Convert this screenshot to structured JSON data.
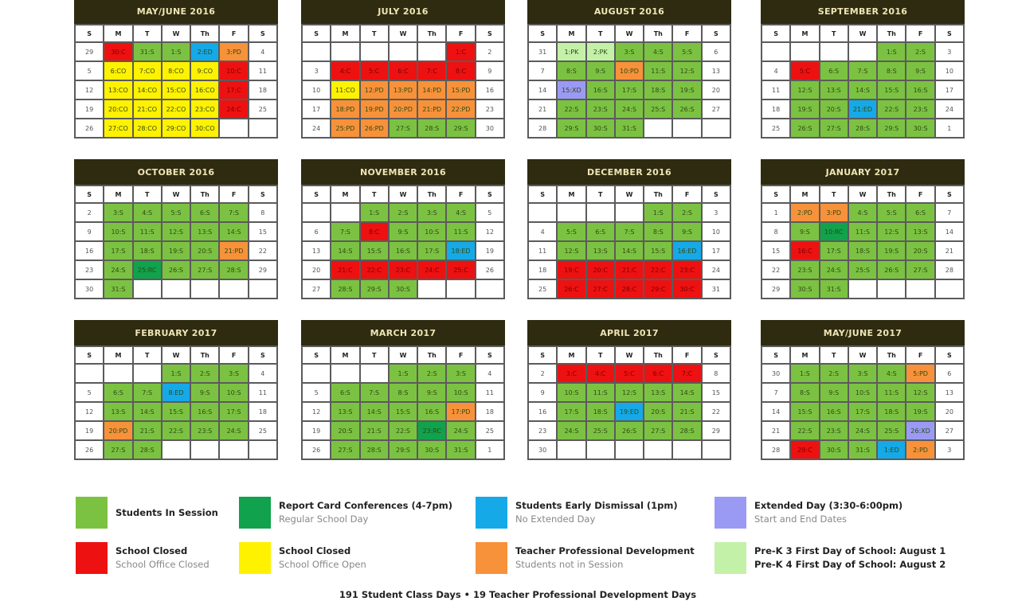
{
  "day_headers": [
    "S",
    "M",
    "T",
    "W",
    "Th",
    "F",
    "S"
  ],
  "status_colors": {
    "S": "#7cc242",
    "RC": "#10a24c",
    "ED": "#15a9e8",
    "XD": "#9a9af4",
    "C": "#ee1111",
    "CO": "#fff200",
    "PD": "#f7923a",
    "PK": "#c4f1a8"
  },
  "header_color": "#2f2b11",
  "months": [
    {
      "title": "MAY/JUNE 2016",
      "weeks": [
        [
          "29",
          "30:C",
          "31:S",
          "1:S",
          "2:ED",
          "3:PD",
          "4"
        ],
        [
          "5",
          "6:CO",
          "7:CO",
          "8:CO",
          "9:CO",
          "10:C",
          "11"
        ],
        [
          "12",
          "13:CO",
          "14:CO",
          "15:CO",
          "16:CO",
          "17:C",
          "18"
        ],
        [
          "19",
          "20:CO",
          "21:CO",
          "22:CO",
          "23:CO",
          "24:C",
          "25"
        ],
        [
          "26",
          "27:CO",
          "28:CO",
          "29:CO",
          "30:CO",
          "",
          ""
        ]
      ]
    },
    {
      "title": "JULY 2016",
      "weeks": [
        [
          "",
          "",
          "",
          "",
          "",
          "1:C",
          "2"
        ],
        [
          "3",
          "4:C",
          "5:C",
          "6:C",
          "7:C",
          "8:C",
          "9"
        ],
        [
          "10",
          "11:CO",
          "12:PD",
          "13:PD",
          "14:PD",
          "15:PD",
          "16"
        ],
        [
          "17",
          "18:PD",
          "19:PD",
          "20:PD",
          "21:PD",
          "22:PD",
          "23"
        ],
        [
          "24",
          "25:PD",
          "26:PD",
          "27:S",
          "28:S",
          "29:S",
          "30"
        ]
      ]
    },
    {
      "title": "AUGUST 2016",
      "weeks": [
        [
          "31",
          "1:PK",
          "2:PK",
          "3:S",
          "4:S",
          "5:S",
          "6"
        ],
        [
          "7",
          "8:S",
          "9:S",
          "10:PD",
          "11:S",
          "12:S",
          "13"
        ],
        [
          "14",
          "15:XD",
          "16:S",
          "17:S",
          "18:S",
          "19:S",
          "20"
        ],
        [
          "21",
          "22:S",
          "23:S",
          "24:S",
          "25:S",
          "26:S",
          "27"
        ],
        [
          "28",
          "29:S",
          "30:S",
          "31:S",
          "",
          "",
          ""
        ]
      ]
    },
    {
      "title": "SEPTEMBER 2016",
      "weeks": [
        [
          "",
          "",
          "",
          "",
          "1:S",
          "2:S",
          "3"
        ],
        [
          "4",
          "5:C",
          "6:S",
          "7:S",
          "8:S",
          "9:S",
          "10"
        ],
        [
          "11",
          "12:S",
          "13:S",
          "14:S",
          "15:S",
          "16:S",
          "17"
        ],
        [
          "18",
          "19:S",
          "20:S",
          "21:ED",
          "22:S",
          "23:S",
          "24"
        ],
        [
          "25",
          "26:S",
          "27:S",
          "28:S",
          "29:S",
          "30:S",
          "1"
        ]
      ]
    },
    {
      "title": "OCTOBER 2016",
      "weeks": [
        [
          "2",
          "3:S",
          "4:S",
          "5:S",
          "6:S",
          "7:S",
          "8"
        ],
        [
          "9",
          "10:S",
          "11:S",
          "12:S",
          "13:S",
          "14:S",
          "15"
        ],
        [
          "16",
          "17:S",
          "18:S",
          "19:S",
          "20:S",
          "21:PD",
          "22"
        ],
        [
          "23",
          "24:S",
          "25:RC",
          "26:S",
          "27:S",
          "28:S",
          "29"
        ],
        [
          "30",
          "31:S",
          "",
          "",
          "",
          "",
          ""
        ]
      ]
    },
    {
      "title": "NOVEMBER 2016",
      "weeks": [
        [
          "",
          "",
          "1:S",
          "2:S",
          "3:S",
          "4:S",
          "5"
        ],
        [
          "6",
          "7:S",
          "8:C",
          "9:S",
          "10:S",
          "11:S",
          "12"
        ],
        [
          "13",
          "14:S",
          "15:S",
          "16:S",
          "17:S",
          "18:ED",
          "19"
        ],
        [
          "20",
          "21:C",
          "22:C",
          "23:C",
          "24:C",
          "25:C",
          "26"
        ],
        [
          "27",
          "28:S",
          "29:S",
          "30:S",
          "",
          "",
          ""
        ]
      ]
    },
    {
      "title": "DECEMBER 2016",
      "weeks": [
        [
          "",
          "",
          "",
          "",
          "1:S",
          "2:S",
          "3"
        ],
        [
          "4",
          "5:S",
          "6:S",
          "7:S",
          "8:S",
          "9:S",
          "10"
        ],
        [
          "11",
          "12:S",
          "13:S",
          "14:S",
          "15:S",
          "16:ED",
          "17"
        ],
        [
          "18",
          "19:C",
          "20:C",
          "21:C",
          "22:C",
          "23:C",
          "24"
        ],
        [
          "25",
          "26:C",
          "27:C",
          "28:C",
          "29:C",
          "30:C",
          "31"
        ]
      ]
    },
    {
      "title": "JANUARY 2017",
      "weeks": [
        [
          "1",
          "2:PD",
          "3:PD",
          "4:S",
          "5:S",
          "6:S",
          "7"
        ],
        [
          "8",
          "9:S",
          "10:RC",
          "11:S",
          "12:S",
          "13:S",
          "14"
        ],
        [
          "15",
          "16:C",
          "17:S",
          "18:S",
          "19:S",
          "20:S",
          "21"
        ],
        [
          "22",
          "23:S",
          "24:S",
          "25:S",
          "26:S",
          "27:S",
          "28"
        ],
        [
          "29",
          "30:S",
          "31:S",
          "",
          "",
          "",
          ""
        ]
      ]
    },
    {
      "title": "FEBRUARY 2017",
      "weeks": [
        [
          "",
          "",
          "",
          "1:S",
          "2:S",
          "3:S",
          "4"
        ],
        [
          "5",
          "6:S",
          "7:S",
          "8:ED",
          "9:S",
          "10:S",
          "11"
        ],
        [
          "12",
          "13:S",
          "14:S",
          "15:S",
          "16:S",
          "17:S",
          "18"
        ],
        [
          "19",
          "20:PD",
          "21:S",
          "22:S",
          "23:S",
          "24:S",
          "25"
        ],
        [
          "26",
          "27:S",
          "28:S",
          "",
          "",
          "",
          ""
        ]
      ]
    },
    {
      "title": "MARCH 2017",
      "weeks": [
        [
          "",
          "",
          "",
          "1:S",
          "2:S",
          "3:S",
          "4"
        ],
        [
          "5",
          "6:S",
          "7:S",
          "8:S",
          "9:S",
          "10:S",
          "11"
        ],
        [
          "12",
          "13:S",
          "14:S",
          "15:S",
          "16:S",
          "17:PD",
          "18"
        ],
        [
          "19",
          "20:S",
          "21:S",
          "22:S",
          "23:RC",
          "24:S",
          "25"
        ],
        [
          "26",
          "27:S",
          "28:S",
          "29:S",
          "30:S",
          "31:S",
          "1"
        ]
      ]
    },
    {
      "title": "APRIL 2017",
      "weeks": [
        [
          "2",
          "3:C",
          "4:C",
          "5:C",
          "6:C",
          "7:C",
          "8"
        ],
        [
          "9",
          "10:S",
          "11:S",
          "12:S",
          "13:S",
          "14:S",
          "15"
        ],
        [
          "16",
          "17:S",
          "18:S",
          "19:ED",
          "20:S",
          "21:S",
          "22"
        ],
        [
          "23",
          "24:S",
          "25:S",
          "26:S",
          "27:S",
          "28:S",
          "29"
        ],
        [
          "30",
          "",
          "",
          "",
          "",
          "",
          ""
        ]
      ]
    },
    {
      "title": "MAY/JUNE 2017",
      "weeks": [
        [
          "30",
          "1:S",
          "2:S",
          "3:S",
          "4:S",
          "5:PD",
          "6"
        ],
        [
          "7",
          "8:S",
          "9:S",
          "10:S",
          "11:S",
          "12:S",
          "13"
        ],
        [
          "14",
          "15:S",
          "16:S",
          "17:S",
          "18:S",
          "19:S",
          "20"
        ],
        [
          "21",
          "22:S",
          "23:S",
          "24:S",
          "25:S",
          "26:XD",
          "27"
        ],
        [
          "28",
          "29:C",
          "30:S",
          "31:S",
          "1:ED",
          "2:PD",
          "3"
        ]
      ]
    }
  ],
  "legend": [
    {
      "key": "S",
      "title": "Students In Session",
      "subtitle": ""
    },
    {
      "key": "RC",
      "title": "Report Card Conferences (4-7pm)",
      "subtitle": "Regular School Day"
    },
    {
      "key": "ED",
      "title": "Students Early Dismissal (1pm)",
      "subtitle": "No Extended Day"
    },
    {
      "key": "XD",
      "title": "Extended Day (3:30-6:00pm)",
      "subtitle": "Start and End Dates"
    },
    {
      "key": "C",
      "title": "School Closed",
      "subtitle": "School Office Closed"
    },
    {
      "key": "CO",
      "title": "School Closed",
      "subtitle": "School Office Open"
    },
    {
      "key": "PD",
      "title": "Teacher Professional Development",
      "subtitle": "Students not in Session"
    },
    {
      "key": "PK",
      "title": "Pre-K 3 First Day of School: August 1",
      "title2": "Pre-K 4 First Day of School: August 2"
    }
  ],
  "footer": "191 Student Class Days • 19 Teacher Professional Development Days"
}
